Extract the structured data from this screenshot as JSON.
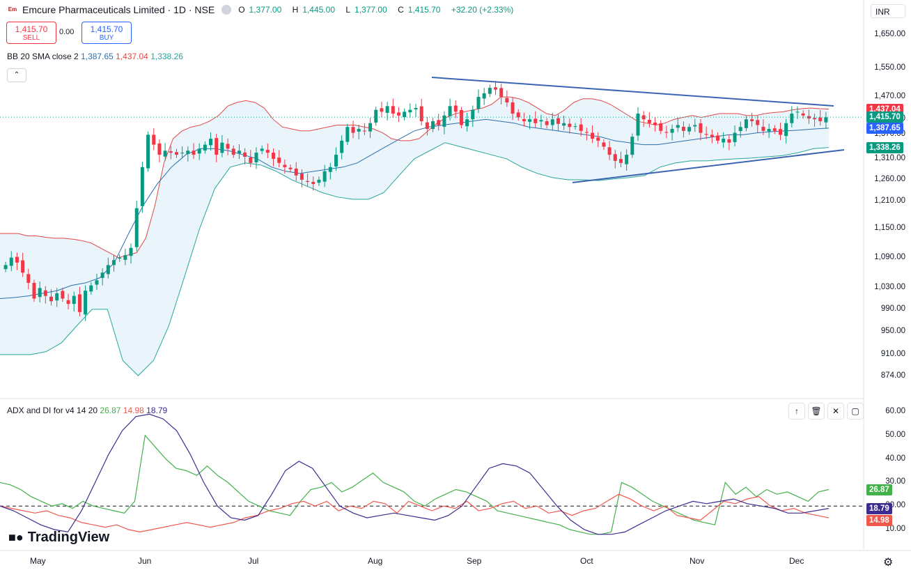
{
  "header": {
    "logo_text": "Em",
    "title": "Emcure Pharmaceuticals Limited · 1D · NSE",
    "ohlc": {
      "o_key": "O",
      "o_val": "1,377.00",
      "h_key": "H",
      "h_val": "1,445.00",
      "l_key": "L",
      "l_val": "1,377.00",
      "c_key": "C",
      "c_val": "1,415.70",
      "change": "+32.20 (+2.33%)"
    },
    "currency": "INR"
  },
  "trade": {
    "sell_price": "1,415.70",
    "sell_label": "SELL",
    "spread": "0.00",
    "buy_price": "1,415.70",
    "buy_label": "BUY"
  },
  "bb_legend": {
    "name": "BB 20 SMA close 2",
    "basis": "1,387.65",
    "upper": "1,437.04",
    "lower": "1,338.26"
  },
  "adx_legend": {
    "name": "ADX and DI for v4 14 20",
    "di_plus": "26.87",
    "di_minus": "14.98",
    "adx": "18.79"
  },
  "branding": {
    "logo": "TradingView"
  },
  "colors": {
    "up": "#089981",
    "down": "#f23645",
    "upper_band": "#e04848",
    "basis": "#2c6fae",
    "lower_band": "#26a69a",
    "band_fill": "#eaf4fb",
    "trendline": "#3a64b0",
    "adx": "#3d2b8f",
    "di_plus": "#43b14b",
    "di_minus": "#f0584c",
    "last_price_tag": "#089981",
    "upper_tag": "#f23645",
    "basis_tag": "#2962ff",
    "lower_tag": "#089981"
  },
  "chart_data": [
    {
      "type": "candlestick",
      "title": "Emcure Pharmaceuticals Limited · 1D · NSE",
      "x_labels": [
        "May",
        "Jun",
        "Jul",
        "Aug",
        "Sep",
        "Oct",
        "Nov",
        "Dec"
      ],
      "y_ticks": [
        "1,650.00",
        "1,550.00",
        "1,470.00",
        "1,410.00",
        "1,370.00",
        "1,310.00",
        "1,260.00",
        "1,210.00",
        "1,150.00",
        "1,090.00",
        "1,030.00",
        "990.00",
        "950.00",
        "910.00",
        "874.00"
      ],
      "ylim": [
        840,
        1700
      ],
      "scale": "log",
      "last_close": 1415.7,
      "price_tags": {
        "upper": "1,437.04",
        "close": "1,415.70",
        "basis": "1,387.65",
        "lower": "1,338.26"
      },
      "close_series": [
        1075,
        1090,
        1080,
        1060,
        1040,
        1010,
        1030,
        1015,
        1005,
        1020,
        1010,
        1000,
        1015,
        985,
        1025,
        1035,
        1045,
        1060,
        1075,
        1085,
        1090,
        1095,
        1110,
        1195,
        1290,
        1370,
        1345,
        1320,
        1330,
        1325,
        1320,
        1325,
        1330,
        1320,
        1335,
        1345,
        1360,
        1320,
        1350,
        1335,
        1320,
        1330,
        1315,
        1300,
        1325,
        1335,
        1325,
        1310,
        1300,
        1290,
        1285,
        1270,
        1260,
        1255,
        1250,
        1260,
        1280,
        1290,
        1320,
        1355,
        1390,
        1375,
        1385,
        1380,
        1400,
        1435,
        1430,
        1445,
        1425,
        1420,
        1430,
        1435,
        1440,
        1405,
        1385,
        1405,
        1395,
        1420,
        1445,
        1430,
        1395,
        1410,
        1435,
        1470,
        1480,
        1495,
        1490,
        1470,
        1455,
        1425,
        1415,
        1405,
        1410,
        1400,
        1408,
        1395,
        1410,
        1398,
        1400,
        1390,
        1392,
        1380,
        1375,
        1360,
        1355,
        1340,
        1320,
        1305,
        1300,
        1320,
        1365,
        1425,
        1410,
        1400,
        1395,
        1380,
        1375,
        1385,
        1395,
        1380,
        1390,
        1395,
        1375,
        1370,
        1365,
        1355,
        1360,
        1350,
        1375,
        1390,
        1410,
        1405,
        1395,
        1380,
        1385,
        1380,
        1370,
        1400,
        1425,
        1430,
        1420,
        1412,
        1410,
        1405,
        1415
      ],
      "upper_band": [
        1140,
        1140,
        1140,
        1135,
        1135,
        1132,
        1130,
        1130,
        1128,
        1125,
        1120,
        1110,
        1100,
        1090,
        1095,
        1100,
        1130,
        1200,
        1300,
        1360,
        1380,
        1390,
        1395,
        1405,
        1420,
        1445,
        1455,
        1460,
        1455,
        1440,
        1410,
        1390,
        1385,
        1380,
        1380,
        1385,
        1390,
        1395,
        1395,
        1395,
        1390,
        1385,
        1375,
        1360,
        1355,
        1355,
        1360,
        1380,
        1400,
        1415,
        1425,
        1430,
        1435,
        1440,
        1450,
        1470,
        1470,
        1465,
        1455,
        1440,
        1425,
        1420,
        1435,
        1455,
        1465,
        1465,
        1460,
        1450,
        1435,
        1420,
        1405,
        1400,
        1395,
        1400,
        1410,
        1415,
        1420,
        1415,
        1420,
        1425,
        1425,
        1425,
        1420,
        1420,
        1425,
        1428,
        1430,
        1435,
        1438,
        1440,
        1438,
        1437
      ],
      "basis": [
        1010,
        1012,
        1015,
        1020,
        1025,
        1035,
        1040,
        1050,
        1080,
        1140,
        1200,
        1250,
        1290,
        1320,
        1335,
        1335,
        1330,
        1320,
        1310,
        1290,
        1280,
        1275,
        1280,
        1285,
        1290,
        1300,
        1320,
        1340,
        1360,
        1380,
        1390,
        1395,
        1400,
        1405,
        1410,
        1405,
        1400,
        1390,
        1385,
        1380,
        1375,
        1370,
        1365,
        1355,
        1350,
        1345,
        1345,
        1350,
        1355,
        1360,
        1365,
        1370,
        1370,
        1375,
        1378,
        1380,
        1382,
        1385,
        1387
      ],
      "lower_band": [
        910,
        910,
        910,
        915,
        930,
        960,
        990,
        990,
        900,
        875,
        900,
        960,
        1050,
        1150,
        1240,
        1290,
        1300,
        1295,
        1280,
        1260,
        1245,
        1230,
        1220,
        1215,
        1215,
        1230,
        1270,
        1310,
        1330,
        1350,
        1340,
        1330,
        1320,
        1310,
        1290,
        1275,
        1265,
        1260,
        1260,
        1258,
        1262,
        1265,
        1270,
        1290,
        1300,
        1305,
        1305,
        1308,
        1310,
        1312,
        1315,
        1318,
        1325,
        1335,
        1338
      ]
    },
    {
      "type": "line",
      "title": "ADX and DI for v4 14 20",
      "y_ticks": [
        "60.00",
        "50.00",
        "40.00",
        "30.00",
        "20.00",
        "10.00"
      ],
      "ylim": [
        5,
        62
      ],
      "threshold": 20,
      "series": [
        {
          "name": "DI+",
          "last": 26.87,
          "values": [
            30,
            29,
            27,
            24,
            22,
            20,
            21,
            19,
            22,
            20,
            19,
            18,
            17,
            22,
            50,
            45,
            40,
            36,
            35,
            33,
            37,
            33,
            30,
            26,
            22,
            20,
            18,
            17,
            16,
            22,
            27,
            28,
            30,
            26,
            28,
            31,
            34,
            30,
            28,
            26,
            22,
            20,
            23,
            25,
            27,
            26,
            24,
            22,
            18,
            17,
            16,
            15,
            14,
            13,
            12,
            10,
            9,
            8,
            8,
            9,
            30,
            28,
            25,
            22,
            20,
            18,
            16,
            14,
            13,
            12,
            30,
            25,
            28,
            24,
            27,
            25,
            26,
            24,
            22,
            26,
            27
          ]
        },
        {
          "name": "DI-",
          "last": 14.98,
          "values": [
            20,
            19,
            18,
            17,
            18,
            16,
            15,
            13,
            12,
            11,
            12,
            10,
            9,
            10,
            11,
            12,
            13,
            12,
            11,
            12,
            13,
            15,
            16,
            18,
            19,
            21,
            22,
            20,
            22,
            18,
            20,
            19,
            22,
            21,
            17,
            22,
            20,
            18,
            20,
            19,
            22,
            18,
            19,
            21,
            22,
            19,
            20,
            17,
            18,
            16,
            18,
            19,
            22,
            25,
            23,
            20,
            18,
            20,
            16,
            15,
            14,
            18,
            22,
            21,
            23,
            24,
            20,
            18,
            19,
            17,
            16,
            15
          ]
        },
        {
          "name": "ADX",
          "last": 18.79,
          "values": [
            20,
            18,
            15,
            12,
            10,
            9,
            18,
            30,
            42,
            52,
            58,
            59,
            57,
            52,
            42,
            30,
            20,
            15,
            14,
            16,
            25,
            35,
            39,
            36,
            28,
            20,
            17,
            15,
            16,
            17,
            16,
            15,
            14,
            16,
            20,
            28,
            36,
            38,
            37,
            34,
            27,
            20,
            14,
            10,
            8,
            8,
            9,
            12,
            15,
            18,
            20,
            22,
            21,
            22,
            23,
            21,
            20,
            19,
            17,
            17,
            18,
            19
          ]
        }
      ]
    }
  ]
}
